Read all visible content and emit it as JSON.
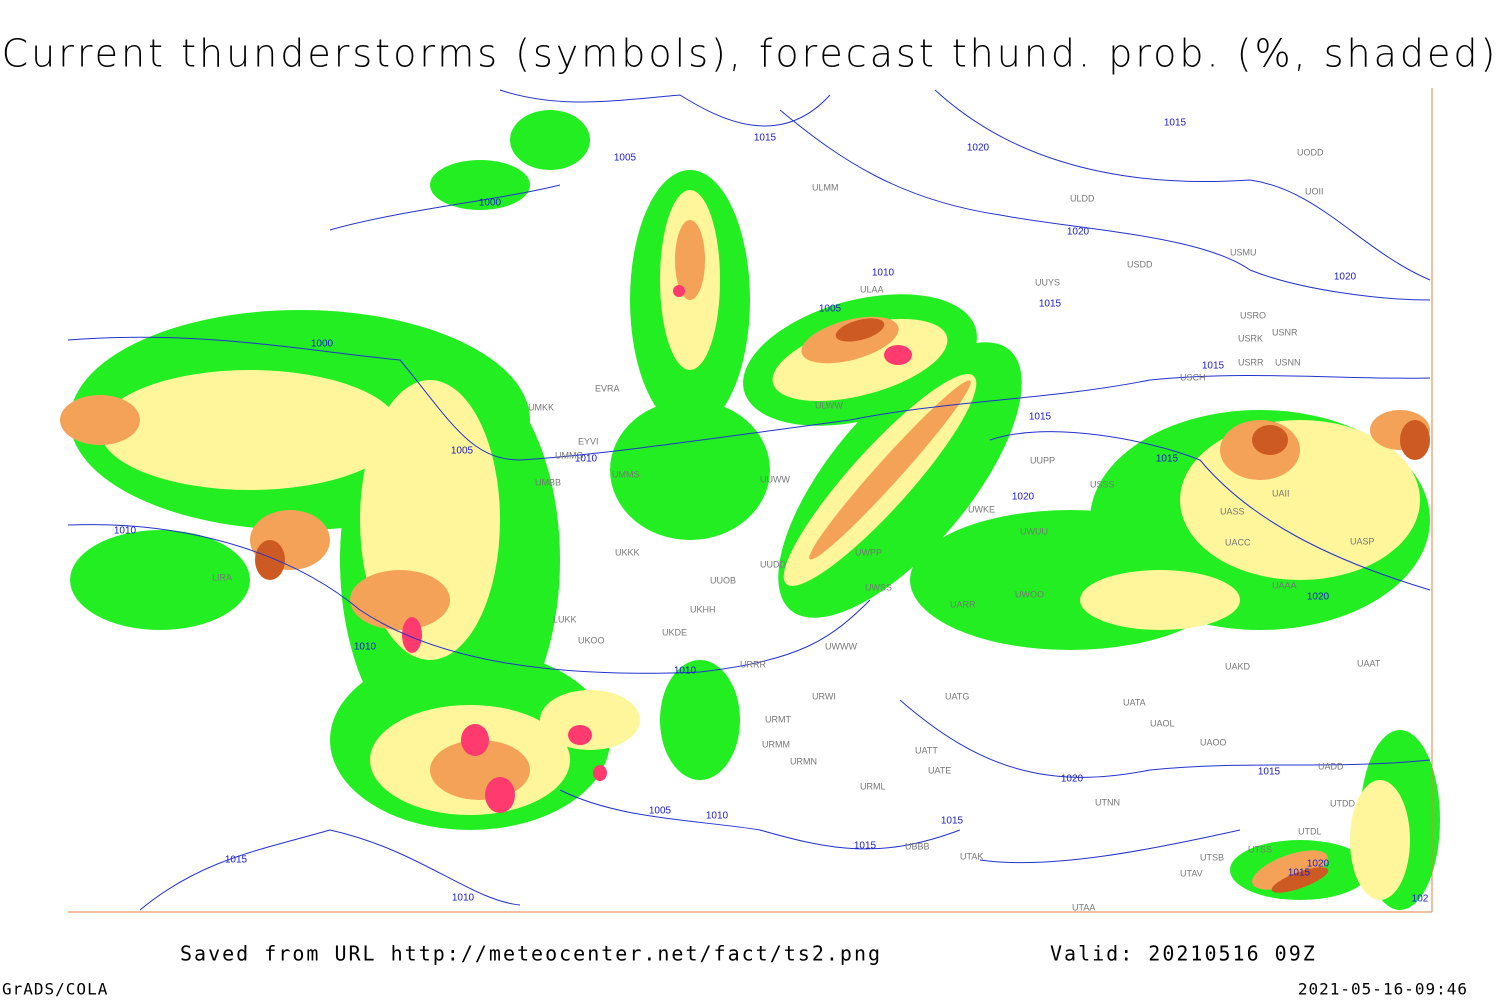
{
  "header": {
    "title": "Current thunderstorms (symbols), forecast thund. prob. (%, shaded)"
  },
  "map": {
    "isobar_labels": [
      "1005",
      "1015",
      "1000",
      "1020",
      "1015",
      "1020",
      "1010",
      "1015",
      "1005",
      "1000",
      "1015",
      "1005",
      "1010",
      "1015",
      "1015",
      "1020",
      "1010",
      "1020",
      "1010",
      "1010",
      "1020",
      "1005",
      "1010",
      "1015",
      "1015",
      "1015",
      "1010",
      "1020",
      "1015",
      "1020",
      "1015",
      "102"
    ],
    "station_labels": [
      "UODD",
      "UOII",
      "ULDD",
      "ULMM",
      "USMU",
      "USDD",
      "UUYS",
      "ULAA",
      "USRO",
      "USNR",
      "USRK",
      "USRR",
      "USNN",
      "USCH",
      "ULWW",
      "UMKK",
      "EVRA",
      "EYVI",
      "UMMG",
      "UMMS",
      "UUWW",
      "UMBB",
      "UUPP",
      "USSS",
      "UWKE",
      "UWUU",
      "UWPP",
      "UUOB",
      "UWSS",
      "UKKK",
      "LUKK",
      "UKOO",
      "UKDE",
      "UKHH",
      "UUDD",
      "UWWW",
      "UWOO",
      "UARR",
      "UATG",
      "UAKD",
      "UATA",
      "UAOL",
      "UAOO",
      "UATE",
      "UATT",
      "UTNN",
      "URML",
      "URWI",
      "URMT",
      "URMM",
      "URMN",
      "URRR",
      "UBBB",
      "UTAK",
      "UTAA",
      "UTSS",
      "UTSB",
      "UTAV",
      "UADD",
      "UTDL",
      "UTDD",
      "LIRA",
      "UAAA",
      "UAAT",
      "UAII",
      "UASP",
      "UACC",
      "UASS"
    ]
  },
  "footer": {
    "source": "Saved from URL http://meteocenter.net/fact/ts2.png",
    "valid": "Valid: 20210516 09Z",
    "software": "GrADS/COLA",
    "timestamp": "2021-05-16-09:46"
  }
}
